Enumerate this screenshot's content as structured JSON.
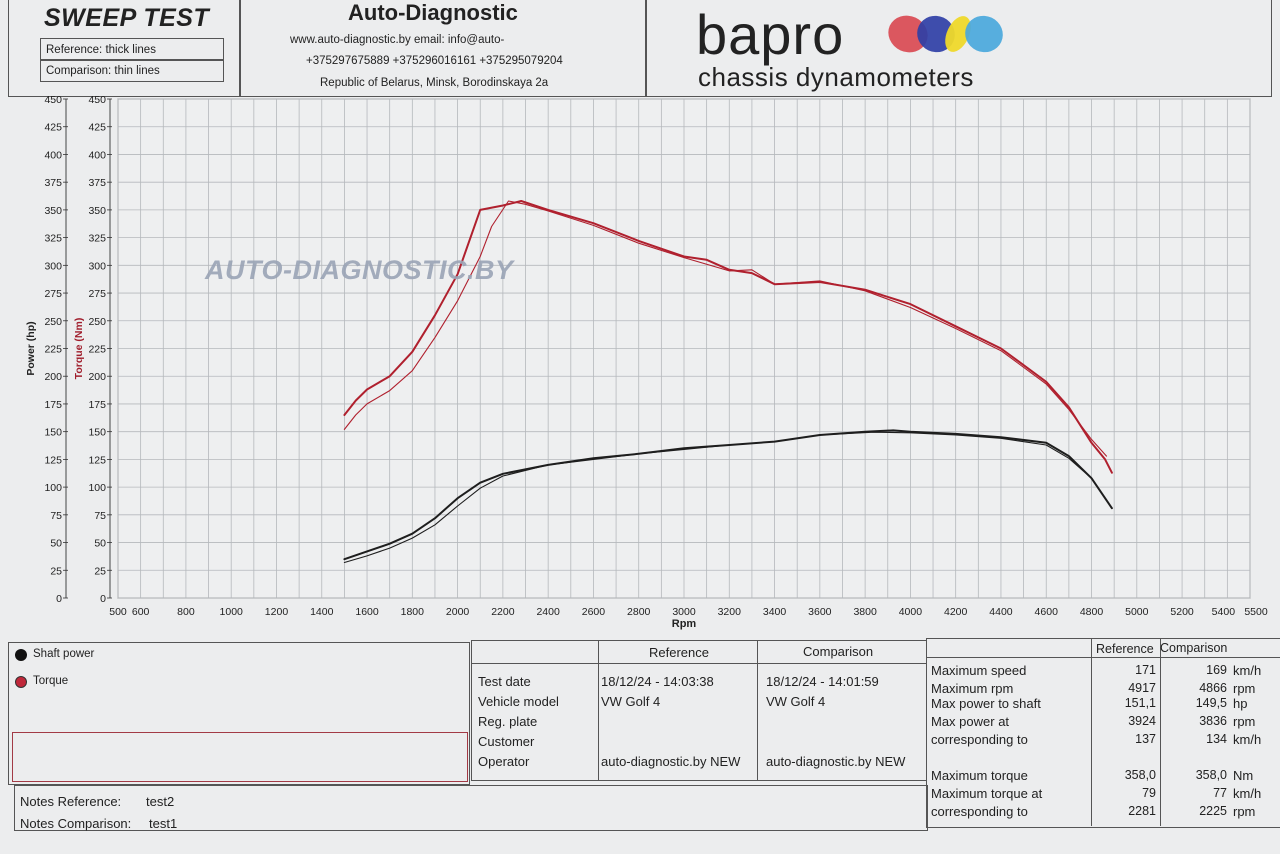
{
  "header": {
    "title": "SWEEP TEST",
    "reference_label": "Reference: thick lines",
    "comparison_label": "Comparison: thin lines",
    "company": "Auto-Diagnostic",
    "web_email": "www.auto-diagnostic.by     email: info@auto-",
    "phones": "+375297675889  +375296016161  +375295079204",
    "address": "Republic of Belarus, Minsk, Borodinskaya 2a",
    "brand": "bapro",
    "brand_sub": "chassis dynamometers",
    "watermark": "AUTO-DIAGNOSTIC.BY",
    "brand_colors": [
      "#d94a52",
      "#2f3fa6",
      "#efd92a",
      "#4aa8dc"
    ]
  },
  "chart_data": {
    "type": "line",
    "xlabel": "Rpm",
    "ylabel_left": "Power (hp)",
    "ylabel_right": "Torque (Nm)",
    "xlim": [
      500,
      5500
    ],
    "ylim": [
      0,
      450
    ],
    "x_ticks": [
      500,
      600,
      800,
      1000,
      1200,
      1400,
      1600,
      1800,
      2000,
      2200,
      2400,
      2600,
      2800,
      3000,
      3200,
      3400,
      3600,
      3800,
      4000,
      4200,
      4400,
      4600,
      4800,
      5000,
      5200,
      5400,
      5500
    ],
    "y_ticks": [
      0,
      25,
      50,
      75,
      100,
      125,
      150,
      175,
      200,
      225,
      250,
      275,
      300,
      325,
      350,
      375,
      400,
      425,
      450
    ],
    "grid": true,
    "series": [
      {
        "name": "Torque",
        "run": "Reference",
        "color": "#b0202e",
        "width": 2.0,
        "x": [
          1500,
          1550,
          1600,
          1700,
          1800,
          1900,
          2000,
          2100,
          2200,
          2281,
          2400,
          2600,
          2800,
          3000,
          3100,
          3200,
          3300,
          3400,
          3600,
          3800,
          4000,
          4200,
          4400,
          4600,
          4700,
          4800,
          4860,
          4890
        ],
        "y": [
          165,
          178,
          188,
          200,
          222,
          255,
          292,
          350,
          354,
          358,
          350,
          338,
          322,
          308,
          305,
          296,
          293,
          283,
          285,
          278,
          265,
          245,
          225,
          195,
          172,
          140,
          125,
          113
        ]
      },
      {
        "name": "Torque",
        "run": "Comparison",
        "color": "#b0202e",
        "width": 1.1,
        "x": [
          1500,
          1550,
          1600,
          1700,
          1800,
          1900,
          2000,
          2100,
          2150,
          2225,
          2300,
          2400,
          2600,
          2800,
          3000,
          3200,
          3300,
          3400,
          3600,
          3800,
          4000,
          4200,
          4400,
          4600,
          4700,
          4800,
          4866
        ],
        "y": [
          152,
          165,
          175,
          187,
          205,
          235,
          268,
          308,
          335,
          358,
          355,
          349,
          336,
          320,
          307,
          295,
          296,
          283,
          286,
          277,
          262,
          243,
          223,
          193,
          170,
          143,
          128
        ]
      },
      {
        "name": "Shaft power",
        "run": "Reference",
        "color": "#1e1e1e",
        "width": 2.0,
        "x": [
          1500,
          1600,
          1700,
          1800,
          1900,
          2000,
          2100,
          2200,
          2400,
          2600,
          2800,
          3000,
          3200,
          3400,
          3600,
          3800,
          3924,
          4000,
          4200,
          4400,
          4600,
          4700,
          4800,
          4890
        ],
        "y": [
          35,
          42,
          49,
          58,
          72,
          90,
          104,
          112,
          120,
          126,
          130,
          135,
          138,
          141,
          147,
          150,
          151.1,
          150,
          148,
          145,
          140,
          128,
          108,
          81
        ]
      },
      {
        "name": "Shaft power",
        "run": "Comparison",
        "color": "#1e1e1e",
        "width": 1.1,
        "x": [
          1500,
          1600,
          1700,
          1800,
          1900,
          2000,
          2100,
          2200,
          2400,
          2600,
          2800,
          3000,
          3200,
          3400,
          3600,
          3836,
          4000,
          4200,
          4400,
          4600,
          4700,
          4800,
          4866
        ],
        "y": [
          32,
          38,
          45,
          54,
          66,
          83,
          99,
          110,
          120,
          125,
          130,
          134,
          138,
          141,
          147,
          149.5,
          149,
          147,
          144,
          138,
          126,
          108,
          88
        ]
      }
    ]
  },
  "legend": {
    "items": [
      {
        "label": "Shaft power",
        "color": "#111111"
      },
      {
        "label": "Torque",
        "color": "#c0283a"
      }
    ]
  },
  "notes": {
    "reference_label": "Notes Reference:",
    "reference_value": "test2",
    "comparison_label": "Notes Comparison:",
    "comparison_value": "test1"
  },
  "info_table": {
    "col_reference": "Reference",
    "col_comparison": "Comparison",
    "rows": [
      {
        "label": "Test date",
        "reference": "18/12/24 - 14:03:38",
        "comparison": "18/12/24 - 14:01:59"
      },
      {
        "label": "Vehicle model",
        "reference": "VW Golf 4",
        "comparison": "VW Golf 4"
      },
      {
        "label": "Reg. plate",
        "reference": "",
        "comparison": ""
      },
      {
        "label": "Customer",
        "reference": "",
        "comparison": ""
      },
      {
        "label": "Operator",
        "reference": "auto-diagnostic.by NEW",
        "comparison": "auto-diagnostic.by NEW"
      }
    ]
  },
  "results_table": {
    "col_reference": "Reference",
    "col_comparison": "Comparison",
    "rows": [
      {
        "label": "Maximum speed",
        "reference": "171",
        "comparison": "169",
        "unit": "km/h"
      },
      {
        "label": "Maximum rpm",
        "reference": "4917",
        "comparison": "4866",
        "unit": "rpm"
      },
      {
        "label": "Max power to shaft",
        "reference": "151,1",
        "comparison": "149,5",
        "unit": "hp"
      },
      {
        "label": "Max power at",
        "reference": "3924",
        "comparison": "3836",
        "unit": "rpm"
      },
      {
        "label": "corresponding to",
        "reference": "137",
        "comparison": "134",
        "unit": "km/h"
      },
      {
        "label": "Maximum torque",
        "reference": "358,0",
        "comparison": "358,0",
        "unit": "Nm"
      },
      {
        "label": "Maximum torque at",
        "reference": "79",
        "comparison": "77",
        "unit": "km/h"
      },
      {
        "label": "corresponding to",
        "reference": "2281",
        "comparison": "2225",
        "unit": "rpm"
      }
    ]
  }
}
